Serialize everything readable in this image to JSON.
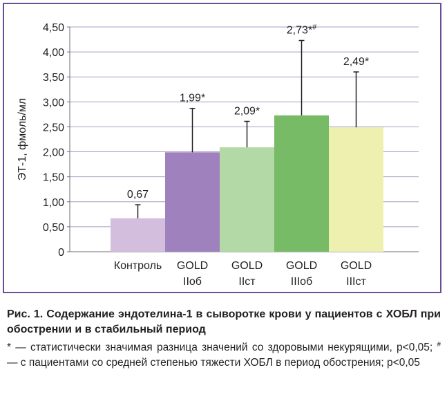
{
  "chart_data": {
    "type": "bar",
    "ylabel": "ЭТ-1, фмоль/мл",
    "xlabel": "",
    "ylim": [
      0,
      4.5
    ],
    "yticks": [
      "0",
      "0,50",
      "1,00",
      "1,50",
      "2,00",
      "2,50",
      "3,00",
      "3,50",
      "4,00",
      "4,50"
    ],
    "categories": [
      [
        "Контроль"
      ],
      [
        "GOLD",
        "IIоб"
      ],
      [
        "GOLD",
        "IIст"
      ],
      [
        "GOLD",
        "IIIоб"
      ],
      [
        "GOLD",
        "IIIст"
      ]
    ],
    "values": [
      0.67,
      1.99,
      2.09,
      2.73,
      2.49
    ],
    "errors": [
      0.27,
      0.88,
      0.52,
      1.5,
      1.11
    ],
    "data_labels": [
      "0,67",
      "1,99*",
      "2,09*",
      "2,73*#",
      "2,49*"
    ],
    "colors": [
      "#d4bedd",
      "#9f82bd",
      "#b3d9a6",
      "#77bb67",
      "#eef0b0"
    ],
    "grid": "horizontal-partial"
  },
  "caption": {
    "title": "Рис. 1. Содержание эндотелина-1 в сыворотке крови у пациентов с ХОБЛ при обострении и в стабильный период",
    "note_line1": "* — статистически значимая разница значений со здоровыми некурящими, p<0,05;",
    "note_sup": "#",
    "note_line2": "— с пациентами со средней степенью тяжести ХОБЛ в период обострения; p<0,05"
  }
}
